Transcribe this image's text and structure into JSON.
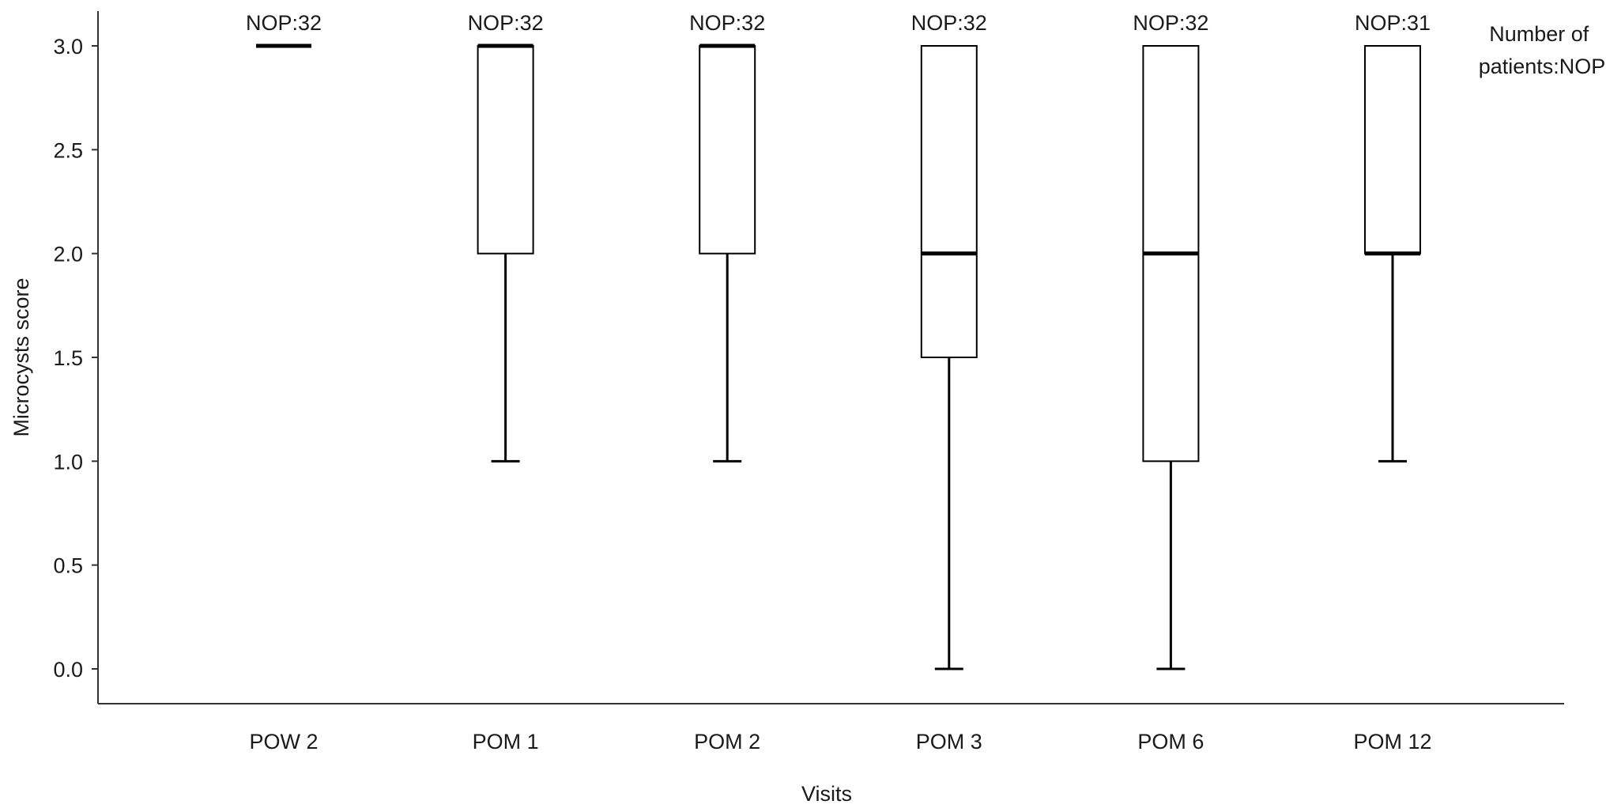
{
  "chart_data": {
    "type": "box",
    "xlabel": "Visits",
    "ylabel": "Microcysts score",
    "ylim": [
      0,
      3
    ],
    "y_ticks": [
      "0.0",
      "0.5",
      "1.0",
      "1.5",
      "2.0",
      "2.5",
      "3.0"
    ],
    "categories": [
      "POW 2",
      "POM 1",
      "POM 2",
      "POM 3",
      "POM 6",
      "POM 12"
    ],
    "boxes": [
      {
        "category": "POW 2",
        "min": 3,
        "q1": 3,
        "median": 3,
        "q3": 3,
        "max": 3,
        "nop_label": "NOP:32"
      },
      {
        "category": "POM 1",
        "min": 1,
        "q1": 2,
        "median": 3,
        "q3": 3,
        "max": 3,
        "nop_label": "NOP:32"
      },
      {
        "category": "POM 2",
        "min": 1,
        "q1": 2,
        "median": 3,
        "q3": 3,
        "max": 3,
        "nop_label": "NOP:32"
      },
      {
        "category": "POM 3",
        "min": 0,
        "q1": 1.5,
        "median": 2,
        "q3": 3,
        "max": 3,
        "nop_label": "NOP:32"
      },
      {
        "category": "POM 6",
        "min": 0,
        "q1": 1,
        "median": 2,
        "q3": 3,
        "max": 3,
        "nop_label": "NOP:32"
      },
      {
        "category": "POM 12",
        "min": 1,
        "q1": 2,
        "median": 2,
        "q3": 3,
        "max": 3,
        "nop_label": "NOP:31"
      }
    ],
    "annotation": [
      "Number of",
      "patients:NOP"
    ],
    "grid": false,
    "line_color": "#000000",
    "box_fill": "#ffffff"
  }
}
